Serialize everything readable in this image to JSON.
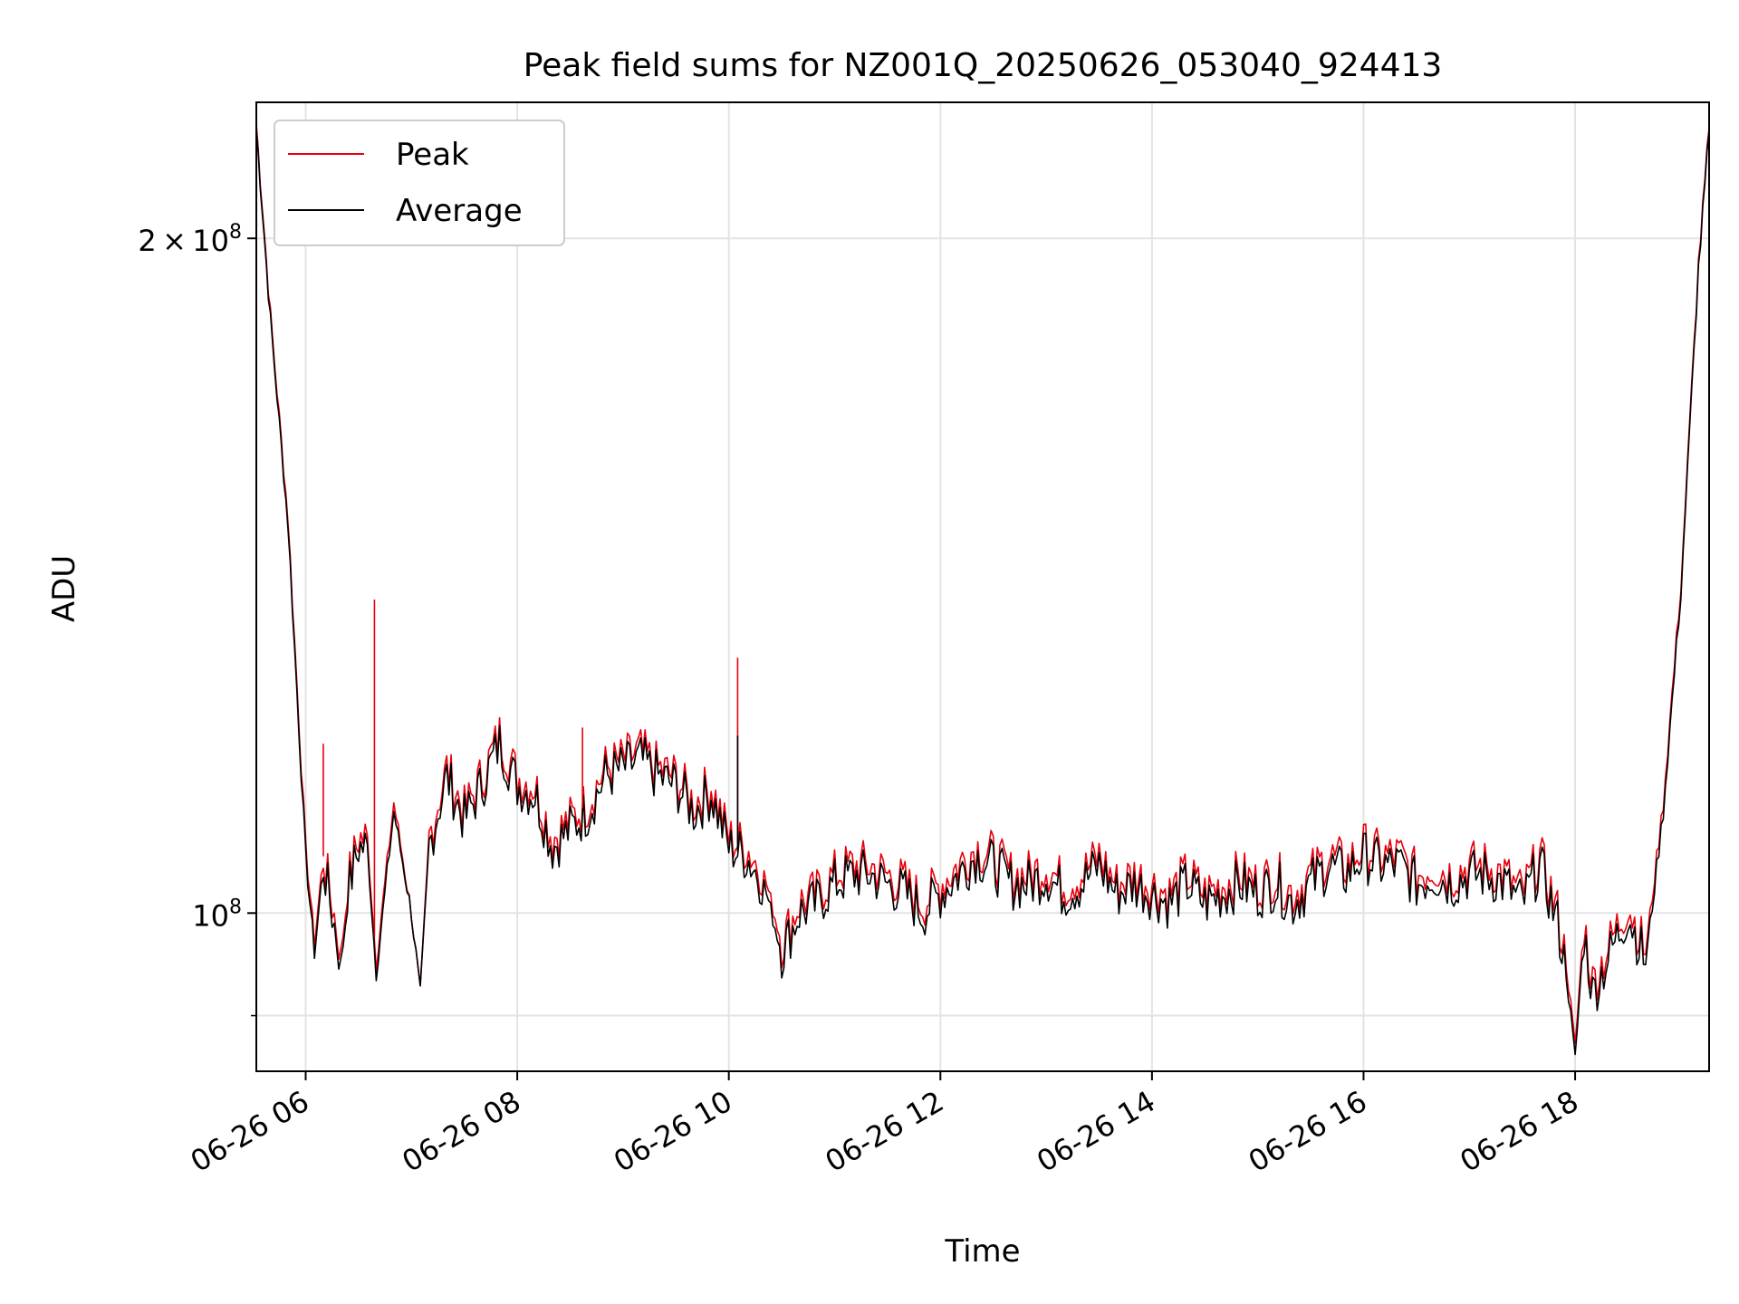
{
  "chart_data": {
    "type": "line",
    "title": "Peak field sums for NZ001Q_20250626_053040_924413",
    "xlabel": "Time",
    "ylabel": "ADU",
    "yscale": "log",
    "grid": true,
    "legend": "top-left",
    "xlim": [
      "2025-06-26 05:32",
      "2025-06-26 19:16"
    ],
    "ylim": [
      85000000,
      230000000
    ],
    "x_ticks": [
      {
        "value": "2025-06-26 06:00",
        "label": "06-26 06"
      },
      {
        "value": "2025-06-26 08:00",
        "label": "06-26 08"
      },
      {
        "value": "2025-06-26 10:00",
        "label": "06-26 10"
      },
      {
        "value": "2025-06-26 12:00",
        "label": "06-26 12"
      },
      {
        "value": "2025-06-26 14:00",
        "label": "06-26 14"
      },
      {
        "value": "2025-06-26 16:00",
        "label": "06-26 16"
      },
      {
        "value": "2025-06-26 18:00",
        "label": "06-26 18"
      }
    ],
    "y_ticks": [
      {
        "value": 100000000,
        "mantissa": "",
        "times": "",
        "base": "10",
        "exp": "8"
      },
      {
        "value": 200000000,
        "mantissa": "2",
        "times": "×",
        "base": "10",
        "exp": "8"
      }
    ],
    "y_minor_ticks": [
      90000000
    ],
    "x": [
      "05:32",
      "05:40",
      "05:50",
      "06:00",
      "06:05",
      "06:10",
      "06:15",
      "06:20",
      "06:25",
      "06:30",
      "06:35",
      "06:40",
      "06:50",
      "07:00",
      "07:05",
      "07:10",
      "07:15",
      "07:20",
      "07:30",
      "07:40",
      "07:50",
      "08:00",
      "08:10",
      "08:20",
      "08:30",
      "08:40",
      "08:50",
      "09:00",
      "09:10",
      "09:20",
      "09:30",
      "09:40",
      "09:50",
      "10:00",
      "10:10",
      "10:20",
      "10:30",
      "10:40",
      "10:50",
      "11:00",
      "11:10",
      "11:20",
      "11:30",
      "11:40",
      "11:50",
      "12:00",
      "12:10",
      "12:20",
      "12:30",
      "12:40",
      "12:50",
      "13:00",
      "13:10",
      "13:20",
      "13:30",
      "13:40",
      "13:50",
      "14:00",
      "14:10",
      "14:20",
      "14:30",
      "14:40",
      "14:50",
      "15:00",
      "15:10",
      "15:20",
      "15:30",
      "15:40",
      "15:50",
      "16:00",
      "16:10",
      "16:20",
      "16:30",
      "16:40",
      "16:50",
      "17:00",
      "17:10",
      "17:20",
      "17:30",
      "17:40",
      "17:50",
      "17:55",
      "18:00",
      "18:05",
      "18:10",
      "18:20",
      "18:30",
      "18:40",
      "18:50",
      "19:00",
      "19:10",
      "19:16"
    ],
    "series": [
      {
        "name": "Peak",
        "color": "#e8000b",
        "values": [
          225000000,
          185000000,
          150000000,
          107000000,
          97000000,
          106000000,
          101000000,
          96000000,
          104000000,
          108000000,
          108000000,
          95000000,
          112000000,
          100000000,
          92000000,
          108000000,
          112000000,
          116000000,
          111000000,
          115000000,
          120000000,
          115000000,
          114000000,
          108000000,
          110000000,
          112000000,
          116000000,
          117000000,
          118000000,
          116000000,
          115000000,
          112000000,
          114000000,
          108000000,
          107000000,
          104000000,
          97000000,
          101000000,
          102000000,
          104000000,
          105000000,
          105000000,
          104000000,
          103000000,
          101000000,
          103000000,
          105000000,
          107000000,
          106000000,
          104000000,
          104000000,
          105000000,
          103000000,
          104000000,
          106000000,
          103000000,
          104000000,
          103000000,
          102000000,
          104000000,
          102000000,
          103000000,
          104000000,
          103000000,
          104000000,
          102000000,
          104000000,
          106000000,
          105000000,
          107000000,
          106000000,
          106000000,
          104000000,
          105000000,
          104000000,
          105000000,
          105000000,
          104000000,
          102000000,
          106000000,
          100000000,
          95000000,
          87000000,
          99000000,
          93000000,
          97000000,
          101000000,
          96000000,
          112000000,
          140000000,
          195000000,
          224000000
        ]
      },
      {
        "name": "Average",
        "color": "#000000",
        "values": [
          224000000,
          184000000,
          149000000,
          106000000,
          96000000,
          105000000,
          100000000,
          95000000,
          103000000,
          107000000,
          107000000,
          94000000,
          111000000,
          100000000,
          92000000,
          107000000,
          111000000,
          115000000,
          110000000,
          114000000,
          119000000,
          114000000,
          113000000,
          107000000,
          109000000,
          111000000,
          115000000,
          116000000,
          117000000,
          115000000,
          114000000,
          111000000,
          113000000,
          107000000,
          106000000,
          103000000,
          96000000,
          100000000,
          101000000,
          103000000,
          104000000,
          104000000,
          103000000,
          102000000,
          100000000,
          102000000,
          104000000,
          106000000,
          105000000,
          103000000,
          103000000,
          104000000,
          102000000,
          103000000,
          105000000,
          102000000,
          103000000,
          102000000,
          101000000,
          103000000,
          101000000,
          102000000,
          103000000,
          102000000,
          103000000,
          101000000,
          103000000,
          105000000,
          104000000,
          106000000,
          105000000,
          105000000,
          103000000,
          104000000,
          103000000,
          104000000,
          104000000,
          103000000,
          101000000,
          105000000,
          99000000,
          94000000,
          86000000,
          98000000,
          92000000,
          96000000,
          100000000,
          95000000,
          111000000,
          139000000,
          194000000,
          223000000
        ]
      }
    ],
    "spikes": [
      {
        "series": "Peak",
        "x": "06:10",
        "y": 119000000
      },
      {
        "series": "Peak",
        "x": "06:39",
        "y": 138000000
      },
      {
        "series": "Peak",
        "x": "08:37",
        "y": 121000000
      },
      {
        "series": "Peak",
        "x": "10:05",
        "y": 130000000
      },
      {
        "series": "Average",
        "x": "10:05",
        "y": 120000000
      }
    ]
  }
}
